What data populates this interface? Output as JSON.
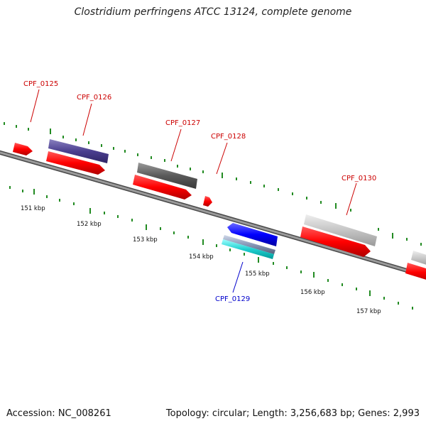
{
  "title": "Clostridium perfringens ATCC 13124, complete genome",
  "footer": {
    "accession": "Accession: NC_008261",
    "topology": "Topology: circular; Length: 3,256,683 bp; Genes: 2,993"
  },
  "scale_labels": [
    "151 kbp",
    "152 kbp",
    "153 kbp",
    "154 kbp",
    "155 kbp",
    "156 kbp",
    "157 kbp"
  ],
  "genes": [
    {
      "name": "CPF_0125",
      "color": "#cc0000"
    },
    {
      "name": "CPF_0126",
      "color": "#cc0000"
    },
    {
      "name": "CPF_0127",
      "color": "#cc0000"
    },
    {
      "name": "CPF_0128",
      "color": "#cc0000"
    },
    {
      "name": "CPF_0129",
      "color": "#0000cc"
    },
    {
      "name": "CPF_0130",
      "color": "#cc0000"
    }
  ],
  "colors": {
    "backbone": "#7a7a7a",
    "tick": "#228b22",
    "forward_cds": "#ff0000",
    "reverse_cds": "#0000ff"
  }
}
